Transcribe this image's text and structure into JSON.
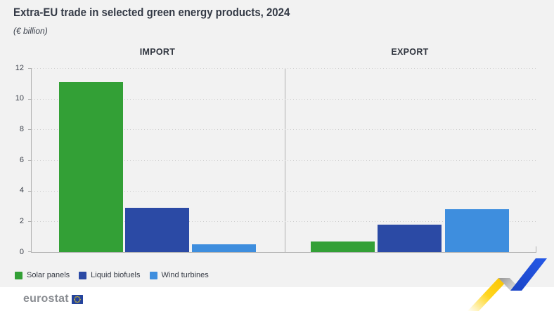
{
  "header": {
    "title": "Extra-EU trade in selected green energy products, 2024",
    "subtitle": "(€ billion)"
  },
  "chart_data": {
    "type": "bar",
    "groups": [
      "IMPORT",
      "EXPORT"
    ],
    "categories": [
      "Solar panels",
      "Liquid biofuels",
      "Wind turbines"
    ],
    "series": [
      {
        "name": "Solar panels",
        "color": "#33a036",
        "values": [
          11.1,
          0.7
        ]
      },
      {
        "name": "Liquid biofuels",
        "color": "#2b4aa5",
        "values": [
          2.9,
          1.8
        ]
      },
      {
        "name": "Wind turbines",
        "color": "#3e8ede",
        "values": [
          0.5,
          2.8
        ]
      }
    ],
    "unit": "€ billion",
    "ylim": [
      0,
      12
    ],
    "yticks": [
      0,
      2,
      4,
      6,
      8,
      10,
      12
    ],
    "grid": "dotted-horizontal",
    "legend_position": "bottom-left"
  },
  "footer": {
    "logo_text": "eurostat"
  },
  "colors": {
    "background": "#f2f2f2",
    "footer_background": "#ffffff",
    "axis": "#b0b0b0",
    "gridline": "#cfcfcf",
    "title_text": "#343a46",
    "deco_yellow": "#ffd617",
    "deco_blue": "#1d4fd5",
    "eu_flag_blue": "#24439d"
  }
}
